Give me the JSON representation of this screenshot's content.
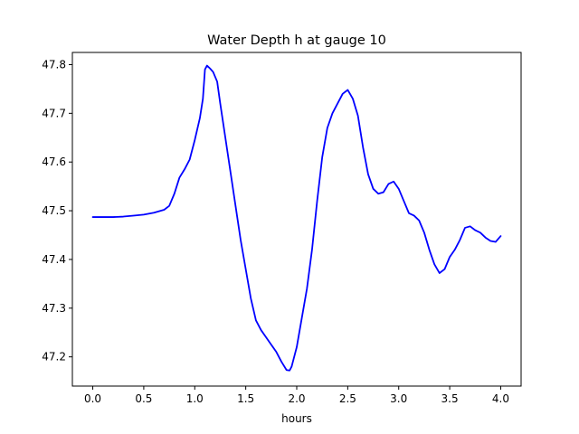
{
  "chart_data": {
    "type": "line",
    "title": "Water Depth h at gauge 10",
    "xlabel": "hours",
    "ylabel": "",
    "xlim": [
      -0.2,
      4.2
    ],
    "ylim": [
      47.14,
      47.825
    ],
    "grid": false,
    "xticks": [
      0.0,
      0.5,
      1.0,
      1.5,
      2.0,
      2.5,
      3.0,
      3.5,
      4.0
    ],
    "xtick_labels": [
      "0.0",
      "0.5",
      "1.0",
      "1.5",
      "2.0",
      "2.5",
      "3.0",
      "3.5",
      "4.0"
    ],
    "yticks": [
      47.2,
      47.3,
      47.4,
      47.5,
      47.6,
      47.7,
      47.8
    ],
    "ytick_labels": [
      "47.2",
      "47.3",
      "47.4",
      "47.5",
      "47.6",
      "47.7",
      "47.8"
    ],
    "series": [
      {
        "color": "#0000ff",
        "x": [
          0.0,
          0.1,
          0.2,
          0.3,
          0.4,
          0.5,
          0.6,
          0.7,
          0.75,
          0.8,
          0.85,
          0.9,
          0.95,
          1.0,
          1.05,
          1.08,
          1.1,
          1.12,
          1.15,
          1.18,
          1.22,
          1.25,
          1.3,
          1.35,
          1.4,
          1.45,
          1.5,
          1.55,
          1.6,
          1.65,
          1.7,
          1.75,
          1.8,
          1.85,
          1.9,
          1.93,
          1.95,
          2.0,
          2.05,
          2.1,
          2.15,
          2.2,
          2.25,
          2.3,
          2.35,
          2.4,
          2.45,
          2.5,
          2.55,
          2.6,
          2.65,
          2.7,
          2.75,
          2.8,
          2.85,
          2.9,
          2.95,
          3.0,
          3.05,
          3.1,
          3.15,
          3.2,
          3.25,
          3.3,
          3.35,
          3.4,
          3.45,
          3.5,
          3.55,
          3.6,
          3.65,
          3.7,
          3.75,
          3.8,
          3.85,
          3.9,
          3.95,
          4.0
        ],
        "values": [
          47.487,
          47.487,
          47.487,
          47.488,
          47.49,
          47.492,
          47.496,
          47.502,
          47.51,
          47.535,
          47.568,
          47.585,
          47.605,
          47.645,
          47.69,
          47.73,
          47.79,
          47.798,
          47.792,
          47.785,
          47.765,
          47.72,
          47.65,
          47.58,
          47.51,
          47.44,
          47.38,
          47.32,
          47.275,
          47.255,
          47.24,
          47.225,
          47.21,
          47.19,
          47.173,
          47.172,
          47.18,
          47.22,
          47.28,
          47.34,
          47.42,
          47.52,
          47.61,
          47.67,
          47.7,
          47.72,
          47.74,
          47.748,
          47.73,
          47.695,
          47.63,
          47.575,
          47.545,
          47.535,
          47.538,
          47.555,
          47.56,
          47.545,
          47.52,
          47.495,
          47.49,
          47.48,
          47.455,
          47.42,
          47.39,
          47.372,
          47.38,
          47.405,
          47.42,
          47.44,
          47.465,
          47.468,
          47.46,
          47.455,
          47.445,
          47.438,
          47.436,
          47.448
        ]
      }
    ]
  }
}
